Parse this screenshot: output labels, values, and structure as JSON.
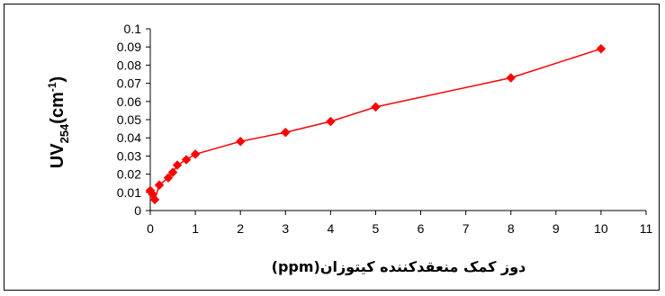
{
  "chart_data": {
    "type": "line",
    "xlabel": "دوز کمک منعقدکننده  کیتوزان(ppm)",
    "ylabel_main": "UV",
    "ylabel_sub": "254",
    "ylabel_unit_open": "(cm",
    "ylabel_unit_sup": "-1",
    "ylabel_unit_close": ")",
    "xlim": [
      0,
      11
    ],
    "ylim": [
      0,
      0.1
    ],
    "x_ticks": [
      "0",
      "1",
      "2",
      "3",
      "4",
      "5",
      "6",
      "7",
      "8",
      "9",
      "10",
      "11"
    ],
    "y_ticks": [
      "0",
      "0.01",
      "0.02",
      "0.03",
      "0.04",
      "0.05",
      "0.06",
      "0.07",
      "0.08",
      "0.09",
      "0.1"
    ],
    "grid": false,
    "legend": "none",
    "series": [
      {
        "color": "#ff0000",
        "marker": "diamond",
        "x": [
          0,
          0.05,
          0.1,
          0.2,
          0.4,
          0.5,
          0.6,
          0.8,
          1,
          2,
          3,
          4,
          5,
          8,
          10
        ],
        "y": [
          0.011,
          0.009,
          0.006,
          0.014,
          0.018,
          0.021,
          0.025,
          0.028,
          0.031,
          0.038,
          0.043,
          0.049,
          0.057,
          0.073,
          0.089
        ]
      }
    ]
  }
}
